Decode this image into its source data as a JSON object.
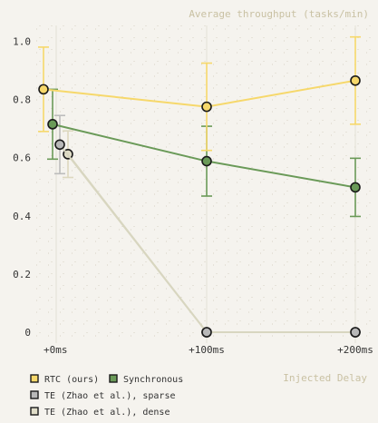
{
  "chart_data": {
    "type": "line",
    "title": "Average throughput (tasks/min)",
    "xlabel": "Injected Delay",
    "ylabel": "",
    "categories": [
      "+0ms",
      "+100ms",
      "+200ms"
    ],
    "ylim": [
      -0.05,
      1.05
    ],
    "yticks": [
      "0",
      "0.2",
      "0.4",
      "0.6",
      "0.8",
      "1.0"
    ],
    "grid": "dotted",
    "legend_placement": "bottom-left",
    "series": [
      {
        "name": "RTC (ours)",
        "color": "#f6d86b",
        "values": [
          0.835,
          0.775,
          0.865
        ],
        "err": [
          0.145,
          0.15,
          0.15
        ]
      },
      {
        "name": "Synchronous",
        "color": "#6a9a58",
        "values": [
          0.715,
          0.588,
          0.498
        ],
        "err": [
          0.12,
          0.12,
          0.1
        ]
      },
      {
        "name": "TE (Zhao et al.), sparse",
        "color": "#b8b8b8",
        "values": [
          0.645,
          0.0,
          0.0
        ],
        "err": [
          0.1,
          0.0,
          0.0
        ]
      },
      {
        "name": "TE (Zhao et al.), dense",
        "color": "#e0ddc8",
        "values": [
          0.612,
          0.0,
          0.0
        ],
        "err": [
          0.08,
          0.0,
          0.0
        ]
      }
    ]
  }
}
